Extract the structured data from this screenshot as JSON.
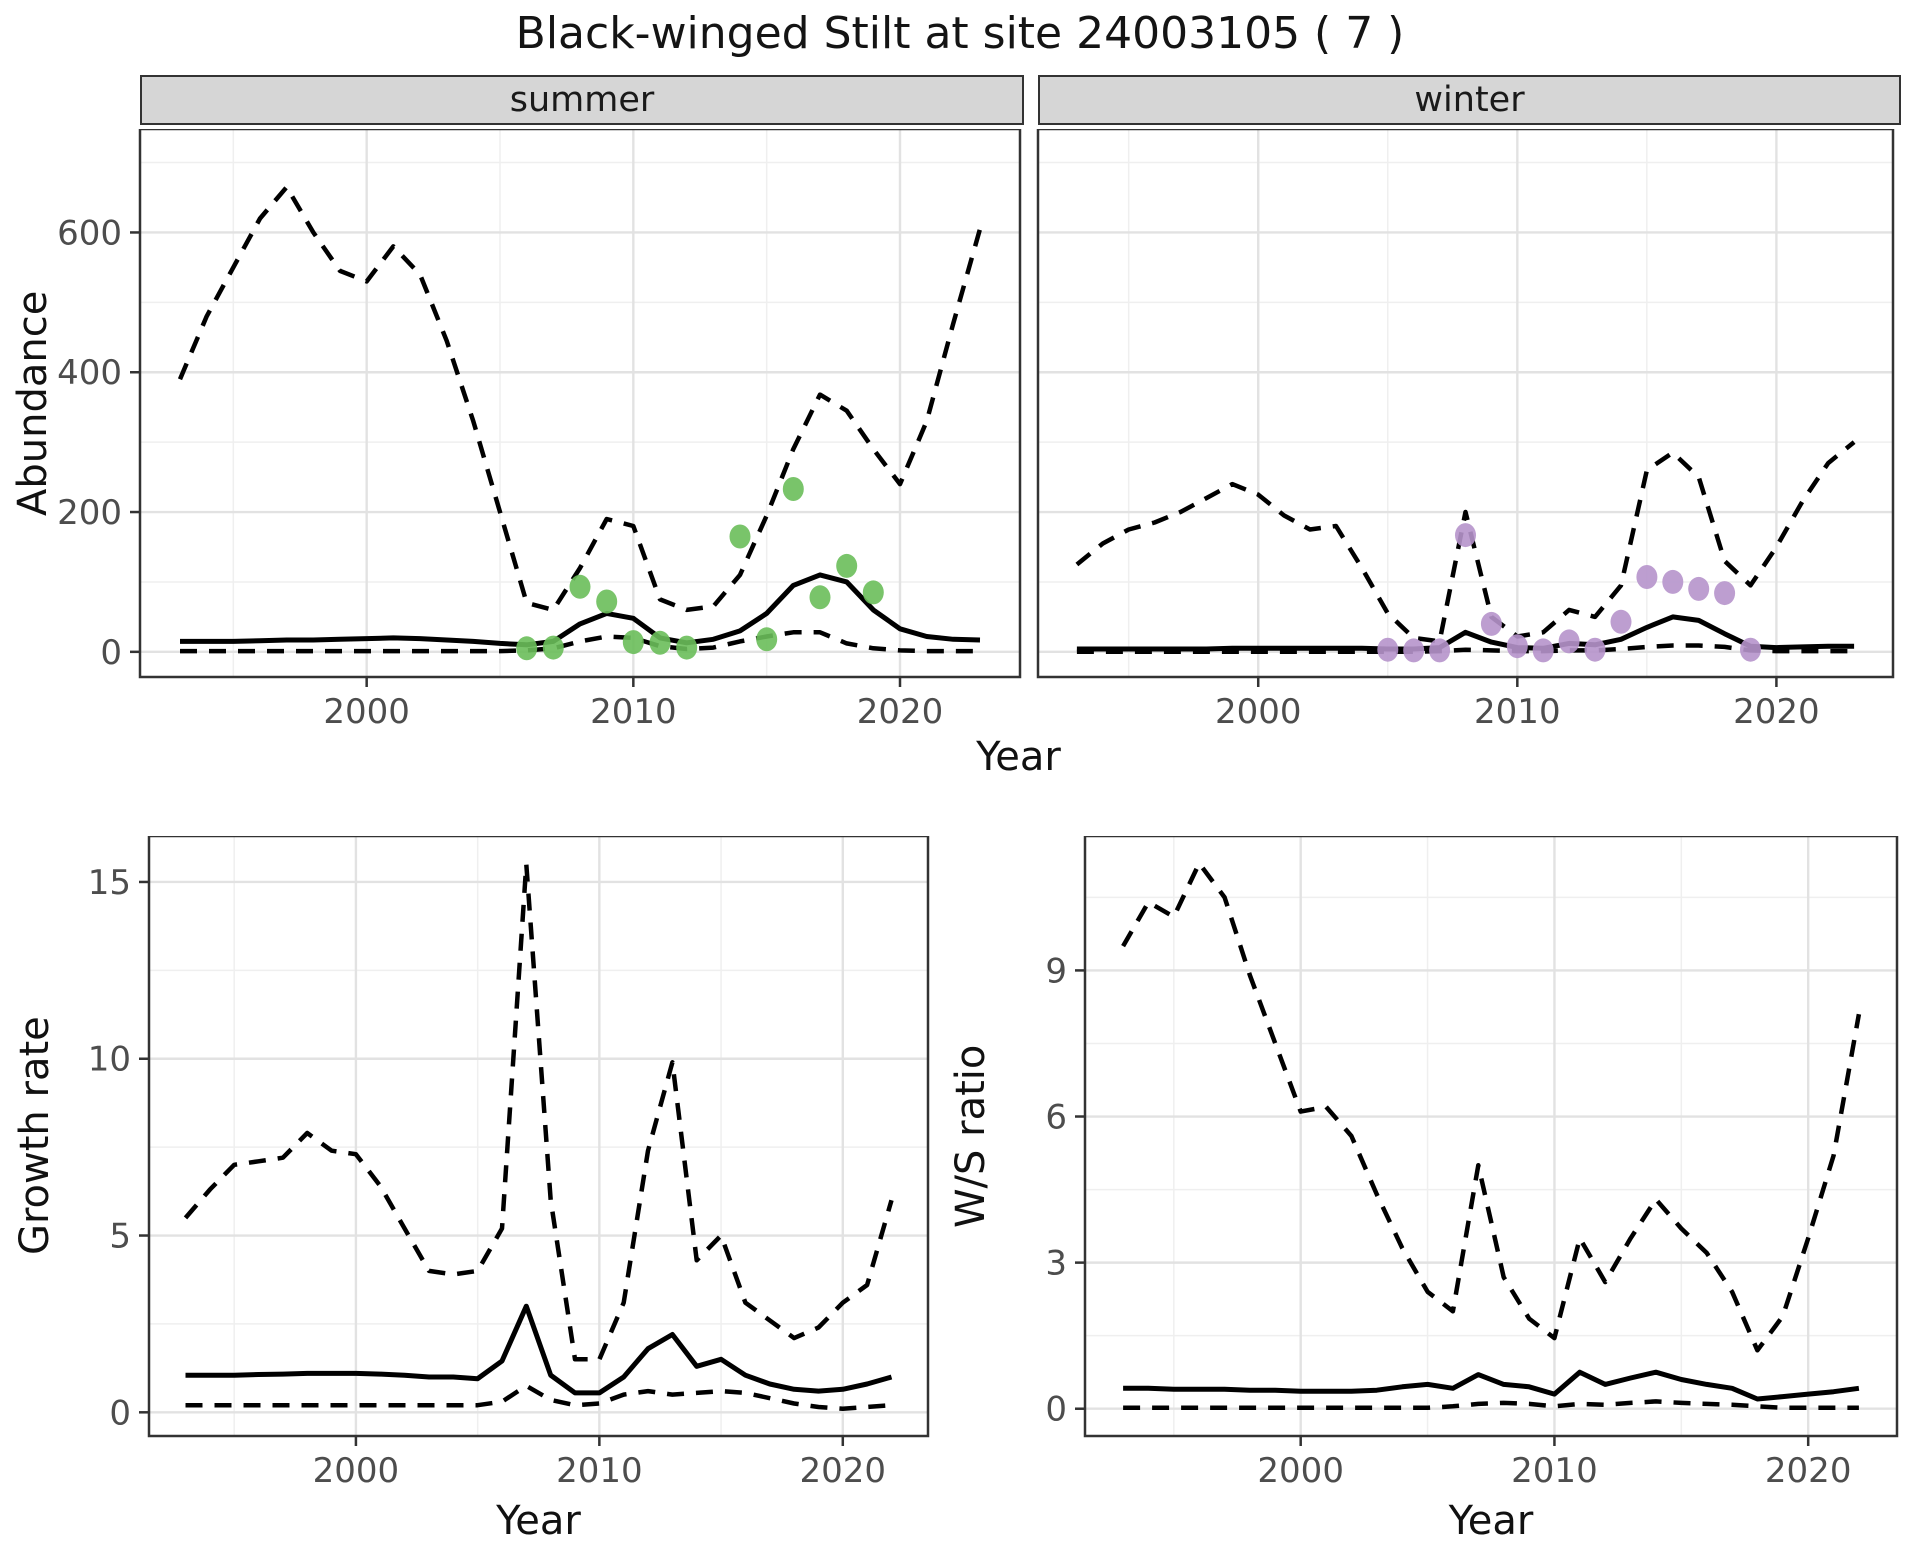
{
  "title": "Black-winged Stilt at site 24003105 ( 7 )",
  "axis": {
    "abundance_label": "Abundance",
    "growth_label": "Growth rate",
    "ws_label": "W/S ratio",
    "year_label": "Year"
  },
  "facets": {
    "summer": "summer",
    "winter": "winter"
  },
  "style": {
    "line": "#000000",
    "summer_points": "#6ABE5A",
    "winter_points": "#B694CB",
    "grid_major": "#e2e2e2",
    "grid_minor": "#efefef",
    "border": "#333333",
    "tick_text": "#4d4d4d",
    "strip_bg": "#d6d6d6"
  },
  "chart_data": [
    {
      "id": "abundance-summer",
      "type": "line",
      "facet": "summer",
      "ylabel": "Abundance",
      "xlabel": "Year",
      "x": [
        1993,
        1994,
        1995,
        1996,
        1997,
        1998,
        1999,
        2000,
        2001,
        2002,
        2003,
        2004,
        2005,
        2006,
        2007,
        2008,
        2009,
        2010,
        2011,
        2012,
        2013,
        2014,
        2015,
        2016,
        2017,
        2018,
        2019,
        2020,
        2021,
        2022,
        2023
      ],
      "series": [
        {
          "name": "upper-95-ci",
          "style": "dashed",
          "values": [
            390,
            480,
            550,
            620,
            665,
            600,
            545,
            530,
            580,
            540,
            445,
            330,
            200,
            70,
            60,
            120,
            190,
            180,
            75,
            60,
            65,
            110,
            195,
            290,
            368,
            345,
            290,
            240,
            330,
            470,
            605
          ]
        },
        {
          "name": "median",
          "style": "solid",
          "values": [
            15,
            15,
            15,
            16,
            17,
            17,
            18,
            19,
            20,
            19,
            17,
            15,
            12,
            10,
            15,
            40,
            55,
            48,
            20,
            13,
            18,
            30,
            55,
            95,
            110,
            100,
            60,
            33,
            22,
            18,
            17
          ]
        },
        {
          "name": "lower-95-ci",
          "style": "dashed",
          "values": [
            1,
            1,
            1,
            1,
            1,
            1,
            1,
            1,
            1,
            1,
            1,
            1,
            1,
            2,
            5,
            15,
            22,
            20,
            8,
            4,
            6,
            15,
            22,
            28,
            28,
            12,
            5,
            2,
            1,
            1,
            1
          ]
        }
      ],
      "points": {
        "name": "observed-summer-counts",
        "color": "#6ABE5A",
        "x": [
          2006,
          2007,
          2008,
          2009,
          2010,
          2011,
          2012,
          2014,
          2015,
          2016,
          2017,
          2018,
          2019
        ],
        "y": [
          5,
          6,
          93,
          72,
          14,
          13,
          6,
          165,
          18,
          233,
          78,
          123,
          85
        ]
      },
      "xlim": [
        1991.5,
        2024.5
      ],
      "ylim": [
        -36,
        748
      ],
      "xticks": [
        2000,
        2010,
        2020
      ],
      "xminor": [
        1995,
        2005,
        2015
      ],
      "yticks": [
        0,
        200,
        400,
        600
      ],
      "yminor": [
        100,
        300,
        500,
        700
      ],
      "show_ytick_labels": true
    },
    {
      "id": "abundance-winter",
      "type": "line",
      "facet": "winter",
      "ylabel": "Abundance",
      "xlabel": "Year",
      "x": [
        1993,
        1994,
        1995,
        1996,
        1997,
        1998,
        1999,
        2000,
        2001,
        2002,
        2003,
        2004,
        2005,
        2006,
        2007,
        2008,
        2009,
        2010,
        2011,
        2012,
        2013,
        2014,
        2015,
        2016,
        2017,
        2018,
        2019,
        2020,
        2021,
        2022,
        2023
      ],
      "series": [
        {
          "name": "upper-95-ci",
          "style": "dashed",
          "values": [
            125,
            155,
            175,
            185,
            200,
            220,
            240,
            225,
            195,
            175,
            180,
            120,
            55,
            20,
            15,
            200,
            50,
            22,
            28,
            60,
            50,
            95,
            260,
            285,
            250,
            130,
            95,
            150,
            215,
            270,
            300
          ]
        },
        {
          "name": "median",
          "style": "solid",
          "values": [
            4,
            4,
            4,
            4,
            4,
            4,
            5,
            5,
            5,
            5,
            5,
            5,
            4,
            4,
            6,
            28,
            14,
            6,
            5,
            12,
            10,
            18,
            35,
            50,
            45,
            26,
            8,
            6,
            7,
            8,
            8
          ]
        },
        {
          "name": "lower-95-ci",
          "style": "dashed",
          "values": [
            0,
            0,
            0,
            0,
            0,
            0,
            0,
            0,
            0,
            0,
            0,
            0,
            0,
            0,
            1,
            3,
            2,
            1,
            1,
            2,
            2,
            4,
            7,
            9,
            9,
            7,
            2,
            1,
            1,
            1,
            1
          ]
        }
      ],
      "points": {
        "name": "observed-winter-counts",
        "color": "#B694CB",
        "x": [
          2005,
          2006,
          2007,
          2008,
          2009,
          2010,
          2011,
          2012,
          2013,
          2014,
          2015,
          2016,
          2017,
          2018,
          2019
        ],
        "y": [
          3,
          2,
          2,
          167,
          40,
          8,
          2,
          15,
          3,
          43,
          107,
          100,
          90,
          84,
          3
        ]
      },
      "xlim": [
        1991.5,
        2024.5
      ],
      "ylim": [
        -36,
        748
      ],
      "xticks": [
        2000,
        2010,
        2020
      ],
      "xminor": [
        1995,
        2005,
        2015
      ],
      "yticks": [
        0,
        200,
        400,
        600
      ],
      "yminor": [
        100,
        300,
        500,
        700
      ],
      "show_ytick_labels": false
    },
    {
      "id": "growth-rate",
      "type": "line",
      "ylabel": "Growth rate",
      "xlabel": "Year",
      "x": [
        1993,
        1994,
        1995,
        1996,
        1997,
        1998,
        1999,
        2000,
        2001,
        2002,
        2003,
        2004,
        2005,
        2006,
        2007,
        2008,
        2009,
        2010,
        2011,
        2012,
        2013,
        2014,
        2015,
        2016,
        2017,
        2018,
        2019,
        2020,
        2021,
        2022
      ],
      "series": [
        {
          "name": "upper-95-ci",
          "style": "dashed",
          "values": [
            5.5,
            6.3,
            7.0,
            7.1,
            7.2,
            7.9,
            7.4,
            7.3,
            6.4,
            5.2,
            4.0,
            3.9,
            4.0,
            5.2,
            15.5,
            6.0,
            1.5,
            1.5,
            3.1,
            7.4,
            9.9,
            4.3,
            5.0,
            3.1,
            2.6,
            2.1,
            2.4,
            3.1,
            3.6,
            6.0
          ]
        },
        {
          "name": "median",
          "style": "solid",
          "values": [
            1.05,
            1.05,
            1.05,
            1.07,
            1.08,
            1.1,
            1.1,
            1.1,
            1.08,
            1.05,
            1.0,
            1.0,
            0.95,
            1.45,
            3.0,
            1.05,
            0.55,
            0.55,
            1.0,
            1.8,
            2.2,
            1.3,
            1.5,
            1.05,
            0.8,
            0.65,
            0.6,
            0.65,
            0.8,
            1.0
          ]
        },
        {
          "name": "lower-95-ci",
          "style": "dashed",
          "values": [
            0.2,
            0.2,
            0.2,
            0.2,
            0.2,
            0.2,
            0.2,
            0.2,
            0.2,
            0.2,
            0.2,
            0.2,
            0.2,
            0.3,
            0.75,
            0.35,
            0.2,
            0.25,
            0.5,
            0.6,
            0.5,
            0.55,
            0.6,
            0.55,
            0.4,
            0.25,
            0.15,
            0.1,
            0.15,
            0.2
          ]
        }
      ],
      "xlim": [
        1991.5,
        2023.5
      ],
      "ylim": [
        -0.67,
        16.3
      ],
      "xticks": [
        2000,
        2010,
        2020
      ],
      "xminor": [
        1995,
        2005,
        2015
      ],
      "yticks": [
        0,
        5,
        10,
        15
      ],
      "yminor": [
        2.5,
        7.5,
        12.5
      ],
      "show_ytick_labels": true
    },
    {
      "id": "ws-ratio",
      "type": "line",
      "ylabel": "W/S ratio",
      "xlabel": "Year",
      "x": [
        1993,
        1994,
        1995,
        1996,
        1997,
        1998,
        1999,
        2000,
        2001,
        2002,
        2003,
        2004,
        2005,
        2006,
        2007,
        2008,
        2009,
        2010,
        2011,
        2012,
        2013,
        2014,
        2015,
        2016,
        2017,
        2018,
        2019,
        2020,
        2021,
        2022
      ],
      "series": [
        {
          "name": "upper-95-ci",
          "style": "dashed",
          "values": [
            9.5,
            10.4,
            10.1,
            11.2,
            10.5,
            8.9,
            7.5,
            6.1,
            6.2,
            5.6,
            4.4,
            3.3,
            2.4,
            2.0,
            5.0,
            2.7,
            1.85,
            1.45,
            3.5,
            2.6,
            3.5,
            4.3,
            3.7,
            3.2,
            2.4,
            1.2,
            1.9,
            3.5,
            5.2,
            8.1
          ]
        },
        {
          "name": "median",
          "style": "solid",
          "values": [
            0.42,
            0.42,
            0.4,
            0.4,
            0.4,
            0.38,
            0.38,
            0.36,
            0.36,
            0.36,
            0.38,
            0.45,
            0.5,
            0.42,
            0.7,
            0.5,
            0.45,
            0.3,
            0.75,
            0.5,
            0.63,
            0.75,
            0.6,
            0.5,
            0.42,
            0.2,
            0.25,
            0.3,
            0.35,
            0.42
          ]
        },
        {
          "name": "lower-95-ci",
          "style": "dashed",
          "values": [
            0.02,
            0.02,
            0.02,
            0.02,
            0.02,
            0.02,
            0.02,
            0.02,
            0.02,
            0.02,
            0.02,
            0.02,
            0.02,
            0.05,
            0.1,
            0.12,
            0.1,
            0.05,
            0.1,
            0.08,
            0.12,
            0.15,
            0.12,
            0.1,
            0.08,
            0.05,
            0.02,
            0.02,
            0.02,
            0.02
          ]
        }
      ],
      "xlim": [
        1991.5,
        2023.5
      ],
      "ylim": [
        -0.56,
        11.76
      ],
      "xticks": [
        2000,
        2010,
        2020
      ],
      "xminor": [
        1995,
        2005,
        2015
      ],
      "yticks": [
        0,
        3,
        6,
        9
      ],
      "yminor": [
        1.5,
        4.5,
        7.5,
        10.5
      ],
      "show_ytick_labels": true
    }
  ]
}
